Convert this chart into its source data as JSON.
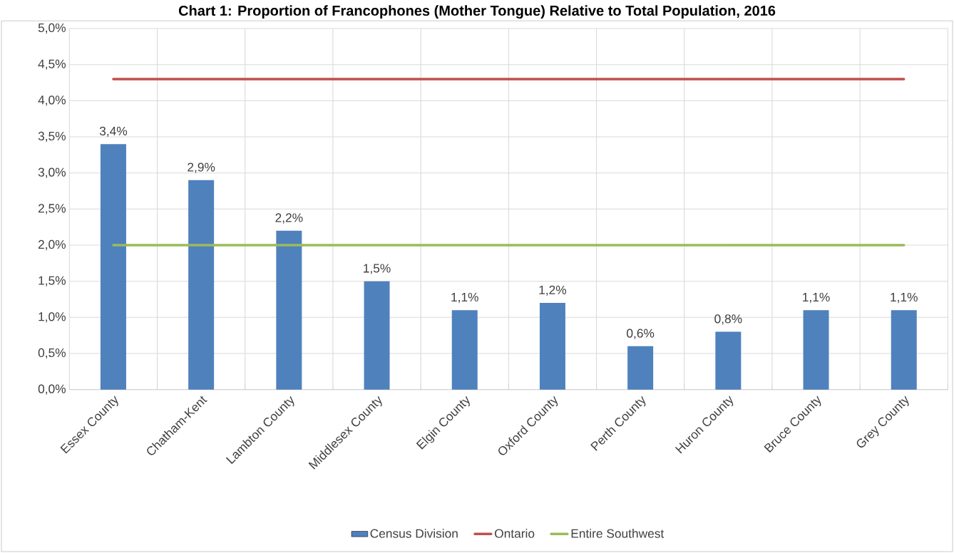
{
  "chart_data": {
    "type": "bar",
    "title": "Chart 1: Proportion of Francophones (Mother Tongue) Relative to Total Population, 2016",
    "categories": [
      "Essex County",
      "Chatham-Kent",
      "Lambton County",
      "Middlesex County",
      "Elgin County",
      "Oxford County",
      "Perth County",
      "Huron County",
      "Bruce County",
      "Grey County"
    ],
    "series": [
      {
        "name": "Census Division",
        "color": "#4f81bd",
        "values": [
          3.4,
          2.9,
          2.2,
          1.5,
          1.1,
          1.2,
          0.6,
          0.8,
          1.1,
          1.1
        ],
        "value_labels": [
          "3,4%",
          "2,9%",
          "2,2%",
          "1,5%",
          "1,1%",
          "1,2%",
          "0,6%",
          "0,8%",
          "1,1%",
          "1,1%"
        ]
      },
      {
        "name": "Ontario",
        "type": "line",
        "color": "#c0504d",
        "values": [
          4.3,
          4.3,
          4.3,
          4.3,
          4.3,
          4.3,
          4.3,
          4.3,
          4.3,
          4.3
        ]
      },
      {
        "name": "Entire Southwest",
        "type": "line",
        "color": "#9bbb59",
        "values": [
          2.0,
          2.0,
          2.0,
          2.0,
          2.0,
          2.0,
          2.0,
          2.0,
          2.0,
          2.0
        ]
      }
    ],
    "ylim": [
      0,
      5
    ],
    "yticks": [
      {
        "value": 0,
        "label": "0,0%"
      },
      {
        "value": 0.5,
        "label": "0,5%"
      },
      {
        "value": 1,
        "label": "1,0%"
      },
      {
        "value": 1.5,
        "label": "1,5%"
      },
      {
        "value": 2,
        "label": "2,0%"
      },
      {
        "value": 2.5,
        "label": "2,5%"
      },
      {
        "value": 3,
        "label": "3,0%"
      },
      {
        "value": 3.5,
        "label": "3,5%"
      },
      {
        "value": 4,
        "label": "4,0%"
      },
      {
        "value": 4.5,
        "label": "4,5%"
      },
      {
        "value": 5,
        "label": "5,0%"
      }
    ],
    "grid": true,
    "legend": "bottom",
    "marker": "none"
  }
}
